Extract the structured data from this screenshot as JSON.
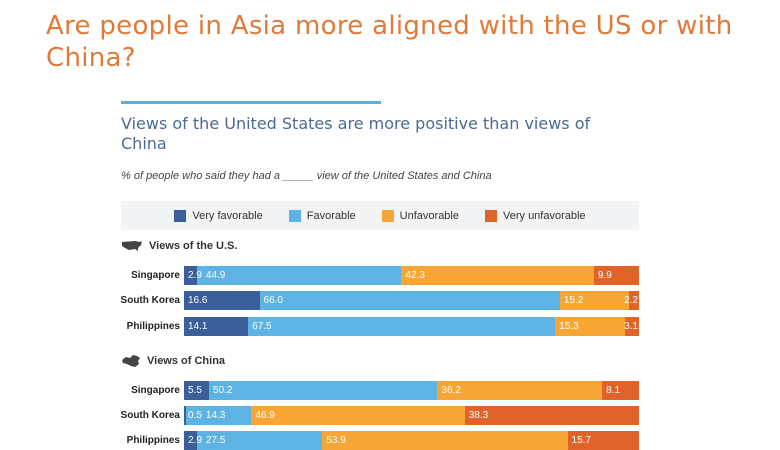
{
  "slide_title": "Are people in Asia more aligned with the US or with China?",
  "chart_data": {
    "type": "bar",
    "orientation": "horizontal-stacked",
    "title": "Views of the United States are more positive than views of China",
    "subtitle": "% of people who said they had a _____ view of the United States and China",
    "legend_position": "top",
    "series": [
      {
        "name": "Very favorable",
        "color": "#3b5f9a"
      },
      {
        "name": "Favorable",
        "color": "#5cb3e4"
      },
      {
        "name": "Unfavorable",
        "color": "#f7a535"
      },
      {
        "name": "Very unfavorable",
        "color": "#e0642a"
      }
    ],
    "panels": [
      {
        "label": "Views of the U.S.",
        "icon": "us-map-icon",
        "rows": [
          {
            "category": "Singapore",
            "values": [
              2.9,
              44.9,
              42.3,
              9.9
            ]
          },
          {
            "category": "South Korea",
            "values": [
              16.6,
              66.0,
              15.2,
              2.2
            ]
          },
          {
            "category": "Philippines",
            "values": [
              14.1,
              67.5,
              15.3,
              3.1
            ]
          }
        ]
      },
      {
        "label": "Views of China",
        "icon": "china-map-icon",
        "rows": [
          {
            "category": "Singapore",
            "values": [
              5.5,
              50.2,
              36.2,
              8.1
            ]
          },
          {
            "category": "South Korea",
            "values": [
              0.5,
              14.3,
              46.9,
              38.3
            ]
          },
          {
            "category": "Philippines",
            "values": [
              2.9,
              27.5,
              53.9,
              15.7
            ]
          }
        ]
      }
    ]
  }
}
